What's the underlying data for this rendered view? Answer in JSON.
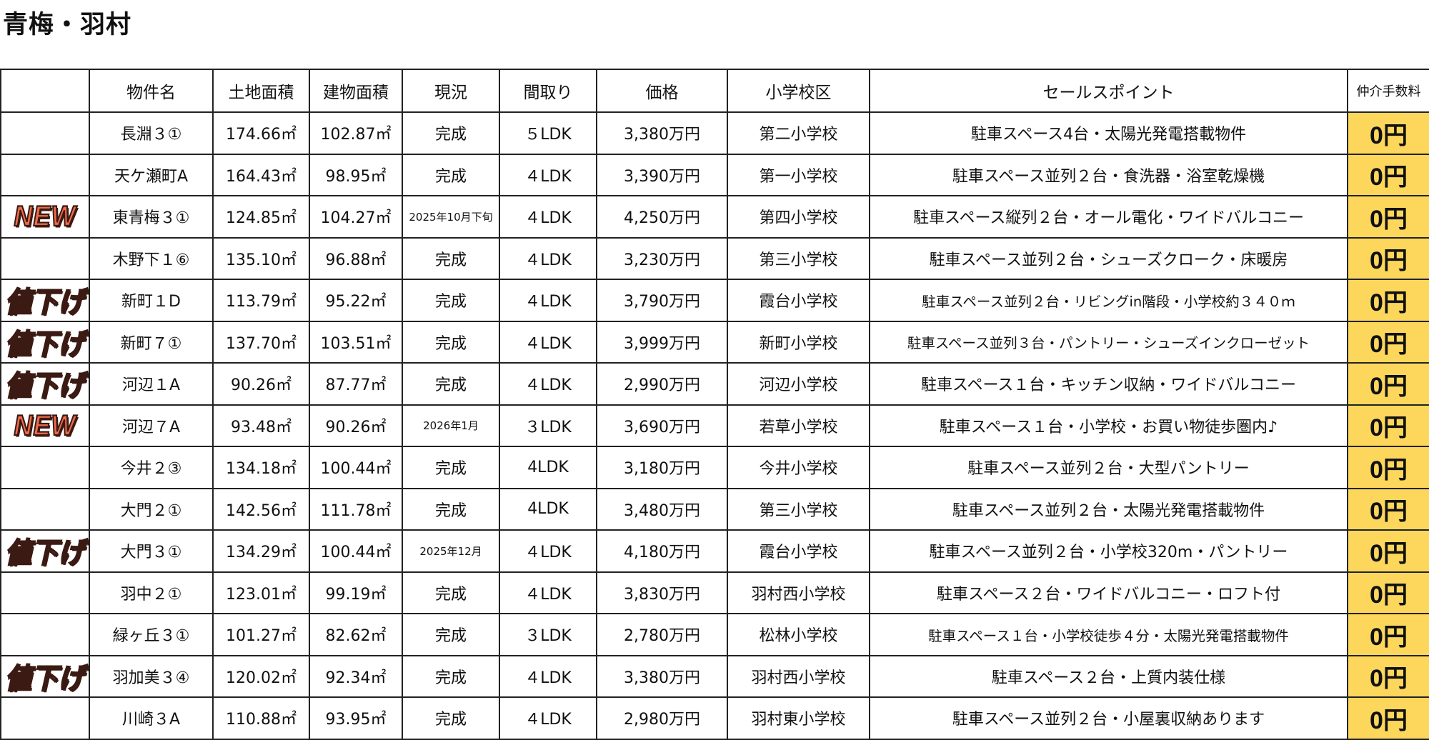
{
  "title": "青梅・羽村",
  "columns": [
    "",
    "物件名",
    "土地面積",
    "建物面積",
    "現況",
    "間取り",
    "価格",
    "小学校区",
    "セールスポイント",
    "仲介手数料"
  ],
  "colors": {
    "badge": "#f26a4c",
    "fee_bg": "#fdd75c"
  },
  "rows": [
    {
      "badge": "",
      "name": "長淵３①",
      "land": "174.66㎡",
      "building": "102.87㎡",
      "status": "完成",
      "layout": "５LDK",
      "price": "3,380万円",
      "school": "第二小学校",
      "points": "駐車スペース4台・太陽光発電搭載物件",
      "fee": "0円"
    },
    {
      "badge": "",
      "name": "天ケ瀬町A",
      "land": "164.43㎡",
      "building": "98.95㎡",
      "status": "完成",
      "layout": "４LDK",
      "price": "3,390万円",
      "school": "第一小学校",
      "points": "駐車スペース並列２台・食洗器・浴室乾燥機",
      "fee": "0円"
    },
    {
      "badge": "NEW",
      "name": "東青梅３①",
      "land": "124.85㎡",
      "building": "104.27㎡",
      "status": "2025年10月下旬",
      "layout": "４LDK",
      "price": "4,250万円",
      "school": "第四小学校",
      "points": "駐車スペース縦列２台・オール電化・ワイドバルコニー",
      "fee": "0円"
    },
    {
      "badge": "",
      "name": "木野下１⑥",
      "land": "135.10㎡",
      "building": "96.88㎡",
      "status": "完成",
      "layout": "４LDK",
      "price": "3,230万円",
      "school": "第三小学校",
      "points": "駐車スペース並列２台・シューズクローク・床暖房",
      "fee": "0円"
    },
    {
      "badge": "値下げ",
      "name": "新町１D",
      "land": "113.79㎡",
      "building": "95.22㎡",
      "status": "完成",
      "layout": "４LDK",
      "price": "3,790万円",
      "school": "霞台小学校",
      "points": "駐車スペース並列２台・リビングin階段・小学校約３４０ｍ",
      "fee": "0円"
    },
    {
      "badge": "値下げ",
      "name": "新町７①",
      "land": "137.70㎡",
      "building": "103.51㎡",
      "status": "完成",
      "layout": "４LDK",
      "price": "3,999万円",
      "school": "新町小学校",
      "points": "駐車スペース並列３台・パントリー・シューズインクローゼット",
      "fee": "0円"
    },
    {
      "badge": "値下げ",
      "name": "河辺１A",
      "land": "90.26㎡",
      "building": "87.77㎡",
      "status": "完成",
      "layout": "４LDK",
      "price": "2,990万円",
      "school": "河辺小学校",
      "points": "駐車スペース１台・キッチン収納・ワイドバルコニー",
      "fee": "0円"
    },
    {
      "badge": "NEW",
      "name": "河辺７A",
      "land": "93.48㎡",
      "building": "90.26㎡",
      "status": "2026年1月",
      "layout": "３LDK",
      "price": "3,690万円",
      "school": "若草小学校",
      "points": "駐車スペース１台・小学校・お買い物徒歩圏内♪",
      "fee": "0円"
    },
    {
      "badge": "",
      "name": "今井２③",
      "land": "134.18㎡",
      "building": "100.44㎡",
      "status": "完成",
      "layout": "4LDK",
      "price": "3,180万円",
      "school": "今井小学校",
      "points": "駐車スペース並列２台・大型パントリー",
      "fee": "0円"
    },
    {
      "badge": "",
      "name": "大門２①",
      "land": "142.56㎡",
      "building": "111.78㎡",
      "status": "完成",
      "layout": "4LDK",
      "price": "3,480万円",
      "school": "第三小学校",
      "points": "駐車スペース並列２台・太陽光発電搭載物件",
      "fee": "0円"
    },
    {
      "badge": "値下げ",
      "name": "大門３①",
      "land": "134.29㎡",
      "building": "100.44㎡",
      "status": "2025年12月",
      "layout": "４LDK",
      "price": "4,180万円",
      "school": "霞台小学校",
      "points": "駐車スペース並列２台・小学校320m・パントリー",
      "fee": "0円"
    },
    {
      "badge": "",
      "name": "羽中２①",
      "land": "123.01㎡",
      "building": "99.19㎡",
      "status": "完成",
      "layout": "４LDK",
      "price": "3,830万円",
      "school": "羽村西小学校",
      "points": "駐車スペース２台・ワイドバルコニー・ロフト付",
      "fee": "0円"
    },
    {
      "badge": "",
      "name": "緑ヶ丘３①",
      "land": "101.27㎡",
      "building": "82.62㎡",
      "status": "完成",
      "layout": "３LDK",
      "price": "2,780万円",
      "school": "松林小学校",
      "points": "駐車スペース１台・小学校徒歩４分・太陽光発電搭載物件",
      "fee": "0円"
    },
    {
      "badge": "値下げ",
      "name": "羽加美３④",
      "land": "120.02㎡",
      "building": "92.34㎡",
      "status": "完成",
      "layout": "４LDK",
      "price": "3,380万円",
      "school": "羽村西小学校",
      "points": "駐車スペース２台・上質内装仕様",
      "fee": "0円"
    },
    {
      "badge": "",
      "name": "川崎３A",
      "land": "110.88㎡",
      "building": "93.95㎡",
      "status": "完成",
      "layout": "４LDK",
      "price": "2,980万円",
      "school": "羽村東小学校",
      "points": "駐車スペース並列２台・小屋裏収納あります",
      "fee": "0円"
    }
  ]
}
